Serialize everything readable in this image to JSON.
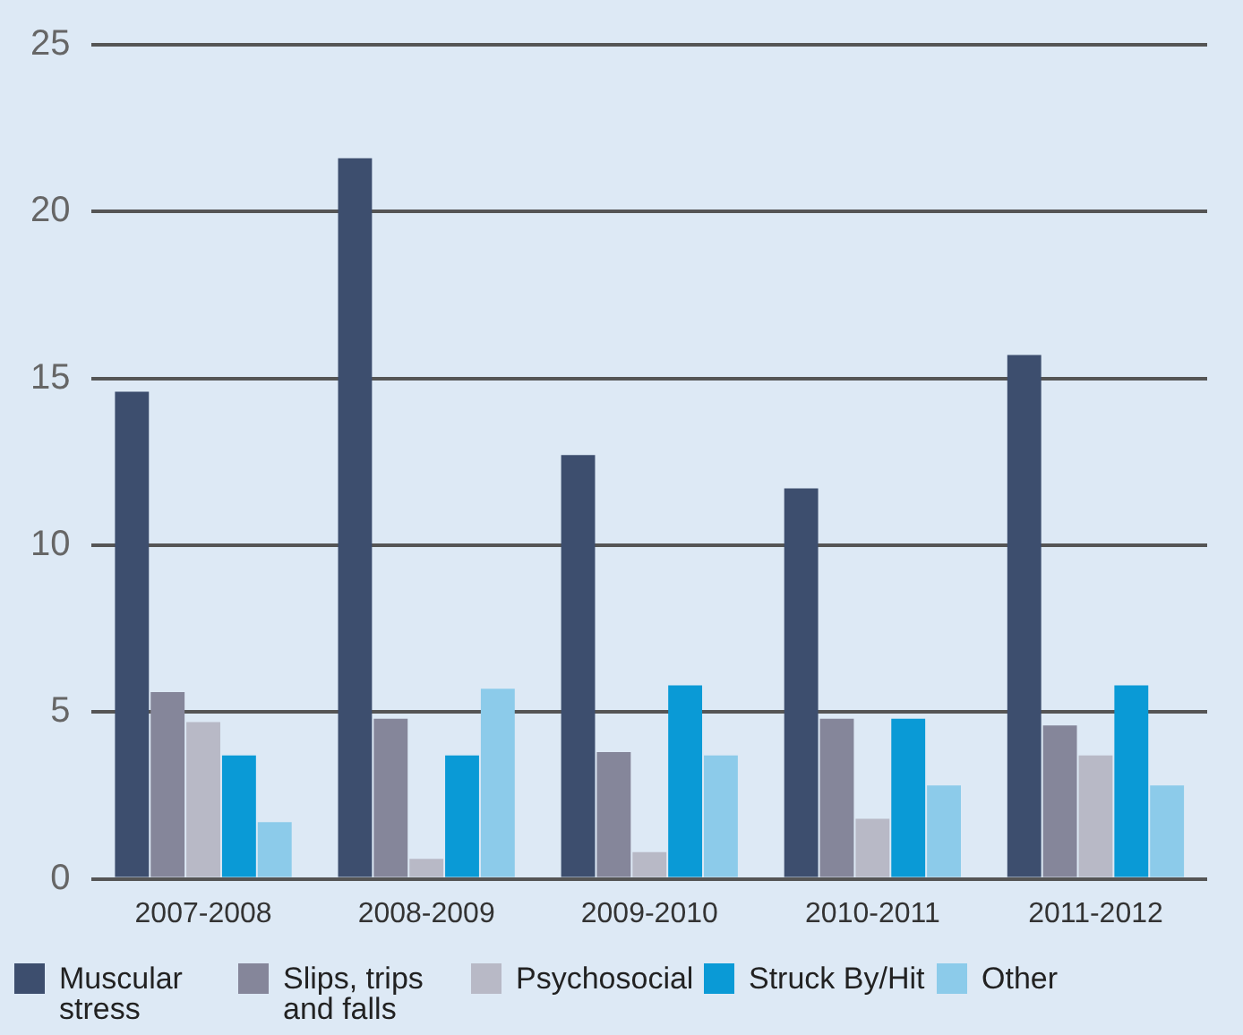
{
  "chart_data": {
    "type": "bar",
    "categories": [
      "2007-2008",
      "2008-2009",
      "2009-2010",
      "2010-2011",
      "2011-2012"
    ],
    "series": [
      {
        "name": "Muscular stress",
        "color": "#3d4e6e",
        "values": [
          14.6,
          21.6,
          12.7,
          11.7,
          15.7
        ]
      },
      {
        "name": "Slips, trips and falls",
        "color": "#85869a",
        "values": [
          5.6,
          4.8,
          3.8,
          4.8,
          4.6
        ]
      },
      {
        "name": "Psychosocial",
        "color": "#b8b9c6",
        "values": [
          4.7,
          0.6,
          0.8,
          1.8,
          3.7
        ]
      },
      {
        "name": "Struck By/Hit",
        "color": "#0a9ad6",
        "values": [
          3.7,
          3.7,
          5.8,
          4.8,
          5.8
        ]
      },
      {
        "name": "Other",
        "color": "#8ccbea",
        "values": [
          1.7,
          5.7,
          3.7,
          2.8,
          2.8
        ]
      }
    ],
    "ylim": [
      0,
      25
    ],
    "yticks": [
      0,
      5,
      10,
      15,
      20,
      25
    ],
    "grid": "y",
    "legend": "bottom"
  }
}
